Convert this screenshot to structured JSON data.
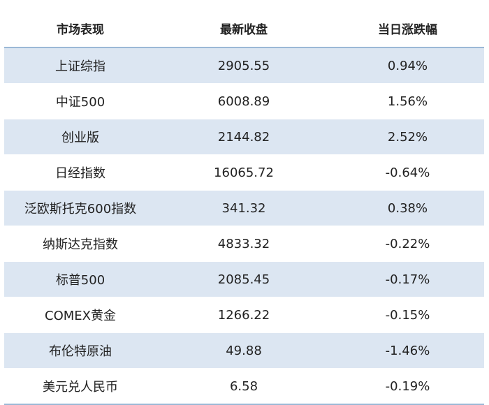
{
  "table": {
    "headers": [
      "市场表现",
      "最新收盘",
      "当日涨跌幅"
    ],
    "rows": [
      [
        "上证综指",
        "2905.55",
        "0.94%"
      ],
      [
        "中证500",
        "6008.89",
        "1.56%"
      ],
      [
        "创业版",
        "2144.82",
        "2.52%"
      ],
      [
        "日经指数",
        "16065.72",
        "-0.64%"
      ],
      [
        "泛欧斯托克600指数",
        "341.32",
        "0.38%"
      ],
      [
        "纳斯达克指数",
        "4833.32",
        "-0.22%"
      ],
      [
        "标普500",
        "2085.45",
        "-0.17%"
      ],
      [
        "COMEX黄金",
        "1266.22",
        "-0.15%"
      ],
      [
        "布伦特原油",
        "49.88",
        "-1.46%"
      ],
      [
        "美元兑人民币",
        "6.58",
        "-0.19%"
      ]
    ]
  },
  "colors": {
    "row_shade": "#dce6f2",
    "rule": "#9bb8d6"
  }
}
